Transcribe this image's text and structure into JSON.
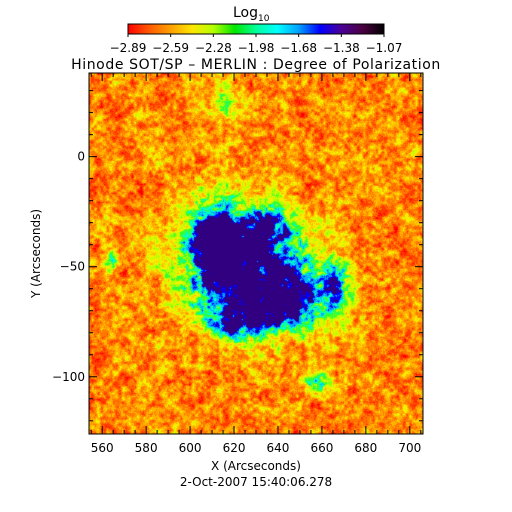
{
  "colorbar": {
    "label_main": "Log",
    "label_sub": "10",
    "ticks": [
      "−2.89",
      "−2.59",
      "−2.28",
      "−1.98",
      "−1.68",
      "−1.38",
      "−1.07"
    ],
    "gradient_colors": [
      "#ff0000",
      "#ff5a00",
      "#ffa000",
      "#ffe600",
      "#b4ff00",
      "#00e600",
      "#00ff9a",
      "#00ffff",
      "#00a0ff",
      "#0000ff",
      "#4b0096",
      "#4a0040",
      "#000000"
    ]
  },
  "title": "Hinode SOT/SP – MERLIN : Degree of Polarization",
  "footer": "2-Oct-2007 15:40:06.278",
  "map": {
    "x_label": "X (Arcseconds)",
    "y_label": "Y (Arcseconds)",
    "x_range": [
      554,
      706
    ],
    "y_range": [
      -126,
      38
    ],
    "x_ticks": [
      560,
      580,
      600,
      620,
      640,
      660,
      680,
      700
    ],
    "y_ticks": [
      0,
      -50,
      -100
    ],
    "palette": [
      "#ff0000",
      "#ff3c00",
      "#ff7800",
      "#ffb400",
      "#f5f000",
      "#b4ff00",
      "#32ff32",
      "#00ffcc",
      "#00a8ff",
      "#0000ff",
      "#300080"
    ]
  }
}
